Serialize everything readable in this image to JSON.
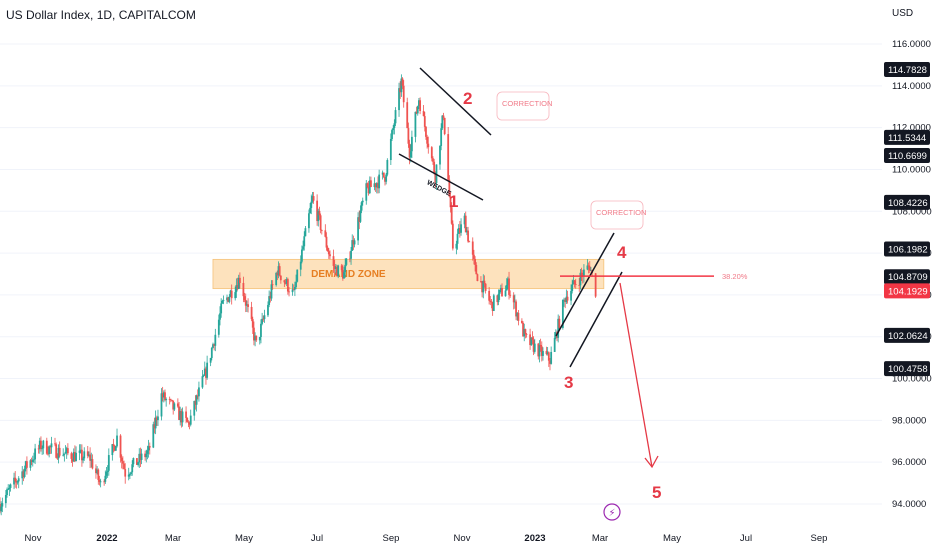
{
  "header": {
    "title": "US Dollar Index, 1D, CAPITALCOM",
    "currency": "USD"
  },
  "chart_data": {
    "type": "candlestick",
    "symbol": "US Dollar Index",
    "interval": "1D",
    "source": "CAPITALCOM",
    "y_axis": {
      "ticks": [
        "116.0000",
        "114.0000",
        "112.0000",
        "110.0000",
        "108.0000",
        "106.0000",
        "104.0000",
        "102.0000",
        "100.0000",
        "98.0000",
        "96.0000",
        "94.0000"
      ],
      "range": [
        93.2,
        117.4
      ]
    },
    "x_axis": {
      "ticks": [
        {
          "label": "Nov",
          "bold": false
        },
        {
          "label": "2022",
          "bold": true
        },
        {
          "label": "Mar",
          "bold": false
        },
        {
          "label": "May",
          "bold": false
        },
        {
          "label": "Jul",
          "bold": false
        },
        {
          "label": "Sep",
          "bold": false
        },
        {
          "label": "Nov",
          "bold": false
        },
        {
          "label": "2023",
          "bold": true
        },
        {
          "label": "Mar",
          "bold": false
        },
        {
          "label": "May",
          "bold": false
        },
        {
          "label": "Jul",
          "bold": false
        },
        {
          "label": "Sep",
          "bold": false
        }
      ]
    },
    "price_path": [
      {
        "date": "2021-10-20",
        "price": 94.0
      },
      {
        "date": "2021-11-24",
        "price": 96.8
      },
      {
        "date": "2021-12-15",
        "price": 96.4
      },
      {
        "date": "2022-01-05",
        "price": 96.2
      },
      {
        "date": "2022-01-14",
        "price": 94.9
      },
      {
        "date": "2022-01-28",
        "price": 97.2
      },
      {
        "date": "2022-02-04",
        "price": 95.5
      },
      {
        "date": "2022-02-24",
        "price": 96.5
      },
      {
        "date": "2022-03-07",
        "price": 99.2
      },
      {
        "date": "2022-03-30",
        "price": 97.8
      },
      {
        "date": "2022-04-15",
        "price": 100.5
      },
      {
        "date": "2022-04-28",
        "price": 103.5
      },
      {
        "date": "2022-05-13",
        "price": 104.8
      },
      {
        "date": "2022-05-27",
        "price": 101.6
      },
      {
        "date": "2022-06-14",
        "price": 105.2
      },
      {
        "date": "2022-06-28",
        "price": 104.0
      },
      {
        "date": "2022-07-14",
        "price": 108.6
      },
      {
        "date": "2022-08-01",
        "price": 105.3
      },
      {
        "date": "2022-08-10",
        "price": 105.0
      },
      {
        "date": "2022-08-29",
        "price": 109.0
      },
      {
        "date": "2022-09-14",
        "price": 109.7
      },
      {
        "date": "2022-09-28",
        "price": 114.2
      },
      {
        "date": "2022-10-05",
        "price": 110.9
      },
      {
        "date": "2022-10-13",
        "price": 113.4
      },
      {
        "date": "2022-10-27",
        "price": 109.7
      },
      {
        "date": "2022-11-03",
        "price": 112.7
      },
      {
        "date": "2022-11-11",
        "price": 106.3
      },
      {
        "date": "2022-11-21",
        "price": 107.6
      },
      {
        "date": "2022-11-30",
        "price": 105.2
      },
      {
        "date": "2022-12-14",
        "price": 103.5
      },
      {
        "date": "2022-12-28",
        "price": 104.5
      },
      {
        "date": "2023-01-12",
        "price": 101.9
      },
      {
        "date": "2023-01-26",
        "price": 101.2
      },
      {
        "date": "2023-02-02",
        "price": 100.9
      },
      {
        "date": "2023-02-15",
        "price": 103.9
      },
      {
        "date": "2023-02-27",
        "price": 104.8
      },
      {
        "date": "2023-03-08",
        "price": 105.4
      },
      {
        "date": "2023-03-13",
        "price": 104.2
      }
    ],
    "price_tags": [
      {
        "value": 114.7828,
        "label": "114.7828",
        "color": "#131722"
      },
      {
        "value": 111.5344,
        "label": "111.5344",
        "color": "#131722"
      },
      {
        "value": 110.6699,
        "label": "110.6699",
        "color": "#131722"
      },
      {
        "value": 108.4226,
        "label": "108.4226",
        "color": "#131722"
      },
      {
        "value": 106.1982,
        "label": "106.1982",
        "color": "#131722"
      },
      {
        "value": 104.8709,
        "label": "104.8709",
        "color": "#131722"
      },
      {
        "value": 104.1929,
        "label": "104.1929",
        "color": "#f23645"
      },
      {
        "value": 102.0624,
        "label": "102.0624",
        "color": "#131722"
      },
      {
        "value": 100.4758,
        "label": "100.4758",
        "color": "#131722"
      }
    ],
    "annotations": {
      "demand_zone": {
        "label": "DEMAND ZONE",
        "from": "2022-04-20",
        "to": "2023-03-20",
        "high": 105.7,
        "low": 104.3
      },
      "fib_level": {
        "label": "38.20%",
        "value": 104.9,
        "from": "2023-01-13"
      },
      "wedge_label": "WEDGE",
      "corrections": [
        "CORRECTION",
        "CORRECTION"
      ],
      "waves": [
        "1",
        "2",
        "3",
        "4",
        "5"
      ]
    },
    "colors": {
      "up": "#26a69a",
      "down": "#ef5350",
      "annotation": "#e53946",
      "zone": "#fde2bd",
      "zone_text": "#e67e22"
    }
  }
}
